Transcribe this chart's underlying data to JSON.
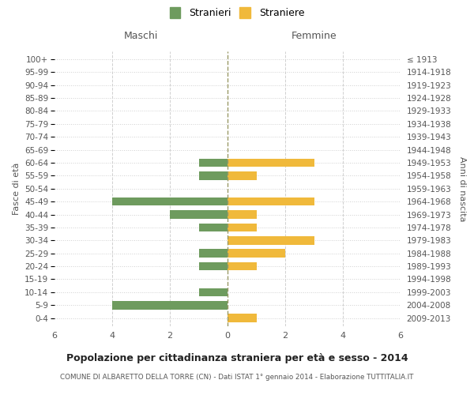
{
  "age_groups": [
    "0-4",
    "5-9",
    "10-14",
    "15-19",
    "20-24",
    "25-29",
    "30-34",
    "35-39",
    "40-44",
    "45-49",
    "50-54",
    "55-59",
    "60-64",
    "65-69",
    "70-74",
    "75-79",
    "80-84",
    "85-89",
    "90-94",
    "95-99",
    "100+"
  ],
  "birth_years": [
    "2009-2013",
    "2004-2008",
    "1999-2003",
    "1994-1998",
    "1989-1993",
    "1984-1988",
    "1979-1983",
    "1974-1978",
    "1969-1973",
    "1964-1968",
    "1959-1963",
    "1954-1958",
    "1949-1953",
    "1944-1948",
    "1939-1943",
    "1934-1938",
    "1929-1933",
    "1924-1928",
    "1919-1923",
    "1914-1918",
    "≤ 1913"
  ],
  "males": [
    0,
    4,
    1,
    0,
    1,
    1,
    0,
    1,
    2,
    4,
    0,
    1,
    1,
    0,
    0,
    0,
    0,
    0,
    0,
    0,
    0
  ],
  "females": [
    1,
    0,
    0,
    0,
    1,
    2,
    3,
    1,
    1,
    3,
    0,
    1,
    3,
    0,
    0,
    0,
    0,
    0,
    0,
    0,
    0
  ],
  "male_color": "#6e9b5e",
  "female_color": "#f0b93b",
  "title": "Popolazione per cittadinanza straniera per età e sesso - 2014",
  "subtitle": "COMUNE DI ALBARETTO DELLA TORRE (CN) - Dati ISTAT 1° gennaio 2014 - Elaborazione TUTTITALIA.IT",
  "legend_male": "Stranieri",
  "legend_female": "Straniere",
  "xlabel_left": "Maschi",
  "xlabel_right": "Femmine",
  "ylabel_left": "Fasce di età",
  "ylabel_right": "Anni di nascita",
  "xlim": 6,
  "background_color": "#ffffff",
  "grid_color": "#d0d0d0",
  "center_line_color": "#999966"
}
